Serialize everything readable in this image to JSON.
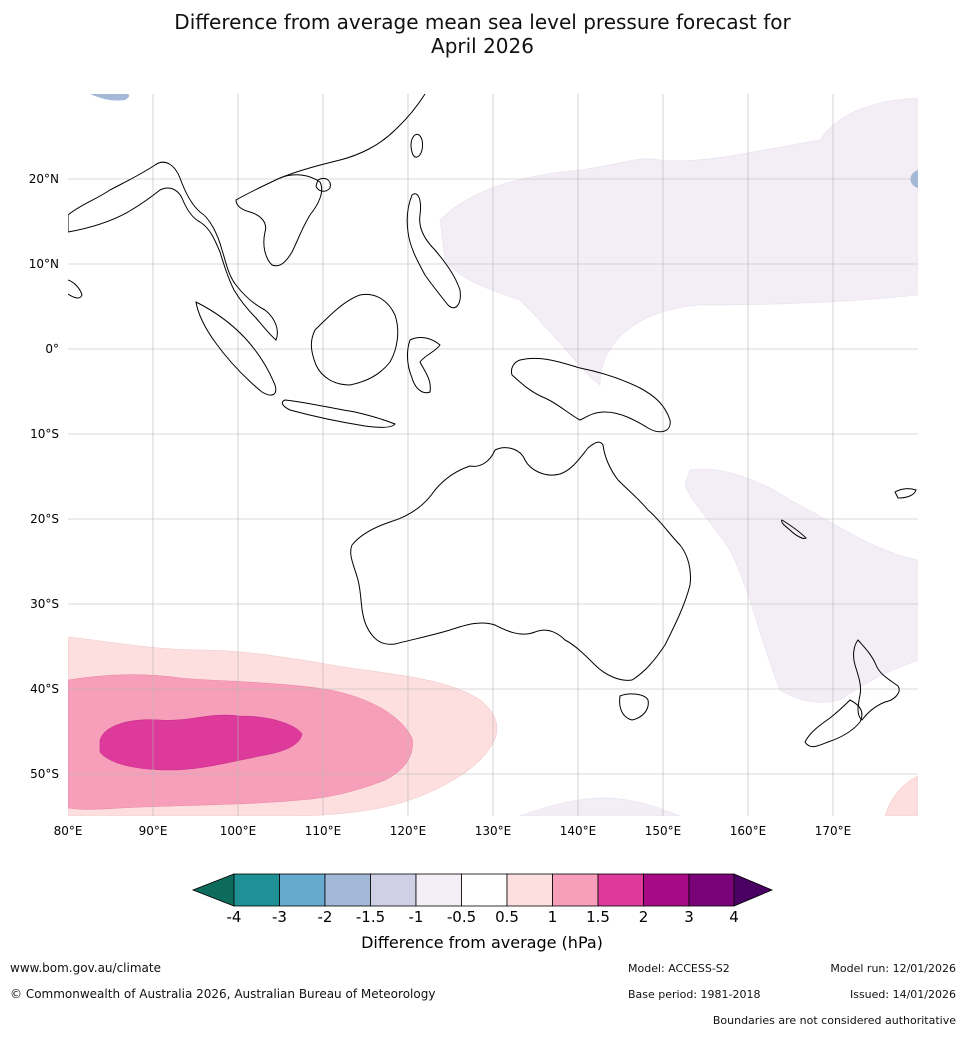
{
  "title_line1": "Difference from average mean sea level pressure forecast for",
  "title_line2": "April 2026",
  "map": {
    "lat_labels": [
      "20°N",
      "10°N",
      "0°",
      "10°S",
      "20°S",
      "30°S",
      "40°S",
      "50°S"
    ],
    "lon_labels": [
      "80°E",
      "90°E",
      "100°E",
      "110°E",
      "120°E",
      "130°E",
      "140°E",
      "150°E",
      "160°E",
      "170°E"
    ],
    "lon_range": [
      80,
      180
    ],
    "lat_range": [
      -55,
      30
    ]
  },
  "legend": {
    "title": "Difference from average (hPa)",
    "ticks": [
      "-4",
      "-3",
      "-2",
      "-1.5",
      "-1",
      "-0.5",
      "0.5",
      "1",
      "1.5",
      "2",
      "3",
      "4"
    ],
    "colors": [
      "#0d6b5b",
      "#1f9196",
      "#67aad0",
      "#a4b8d8",
      "#cfd0e6",
      "#f3eef6",
      "#ffffff",
      "#fddfe0",
      "#f79fba",
      "#dd3a9b",
      "#a70a84",
      "#7a0379",
      "#4a0062"
    ]
  },
  "footer": {
    "url": "www.bom.gov.au/climate",
    "copyright": "© Commonwealth of Australia 2026, Australian Bureau of Meteorology",
    "model": "Model: ACCESS-S2",
    "base_period": "Base period: 1981-2018",
    "model_run": "Model run: 12/01/2026",
    "issued": "Issued: 14/01/2026",
    "disclaimer": "Boundaries are not considered authoritative"
  }
}
